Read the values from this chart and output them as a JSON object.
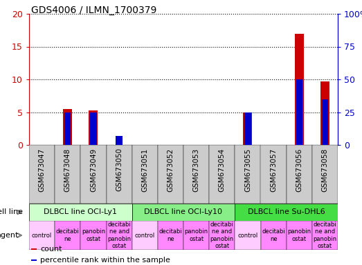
{
  "title": "GDS4006 / ILMN_1700379",
  "samples": [
    "GSM673047",
    "GSM673048",
    "GSM673049",
    "GSM673050",
    "GSM673051",
    "GSM673052",
    "GSM673053",
    "GSM673054",
    "GSM673055",
    "GSM673057",
    "GSM673056",
    "GSM673058"
  ],
  "count_values": [
    0,
    5.5,
    5.3,
    0,
    0,
    0,
    0,
    0,
    5.0,
    0,
    17.0,
    9.7
  ],
  "percentile_values": [
    0,
    25,
    25,
    7,
    0,
    0,
    0,
    0,
    25,
    0,
    50,
    35
  ],
  "ylim_left": [
    0,
    20
  ],
  "ylim_right": [
    0,
    100
  ],
  "yticks_left": [
    0,
    5,
    10,
    15,
    20
  ],
  "ytick_labels_left": [
    "0",
    "5",
    "10",
    "15",
    "20"
  ],
  "yticks_right": [
    0,
    25,
    50,
    75,
    100
  ],
  "ytick_labels_right": [
    "0",
    "25",
    "50",
    "75",
    "100%"
  ],
  "cell_line_groups": [
    {
      "label": "DLBCL line OCI-Ly1",
      "start": 0,
      "end": 3,
      "color": "#ccffcc"
    },
    {
      "label": "DLBCL line OCI-Ly10",
      "start": 4,
      "end": 7,
      "color": "#88ee88"
    },
    {
      "label": "DLBCL line Su-DHL6",
      "start": 8,
      "end": 11,
      "color": "#44dd44"
    }
  ],
  "agent_labels": [
    "control",
    "decitabi\nne",
    "panobin\nostat",
    "decitabi\nne and\npanobin\nostat",
    "control",
    "decitabi\nne",
    "panobin\nostat",
    "decitabi\nne and\npanobin\nostat",
    "control",
    "decitabi\nne",
    "panobin\nostat",
    "decitabi\nne and\npanobin\nostat"
  ],
  "agent_colors": [
    "#ffccff",
    "#ff88ff",
    "#ff88ff",
    "#ff88ff",
    "#ffccff",
    "#ff88ff",
    "#ff88ff",
    "#ff88ff",
    "#ffccff",
    "#ff88ff",
    "#ff88ff",
    "#ff88ff"
  ],
  "bar_color_count": "#cc0000",
  "bar_color_percentile": "#0000cc",
  "bar_width": 0.5,
  "grid_color": "black",
  "grid_linestyle": "dotted",
  "xlabel_rotation": 90,
  "tick_label_color_left": "#cc0000",
  "tick_label_color_right": "#0000cc",
  "legend_items": [
    {
      "color": "#cc0000",
      "label": "count"
    },
    {
      "color": "#0000cc",
      "label": "percentile rank within the sample"
    }
  ],
  "cell_line_row_label": "cell line",
  "agent_row_label": "agent",
  "xtick_bg_color": "#cccccc",
  "xticklabel_fontsize": 7.5,
  "cell_line_fontsize": 8,
  "agent_fontsize": 6,
  "legend_fontsize": 8,
  "row_label_fontsize": 8
}
